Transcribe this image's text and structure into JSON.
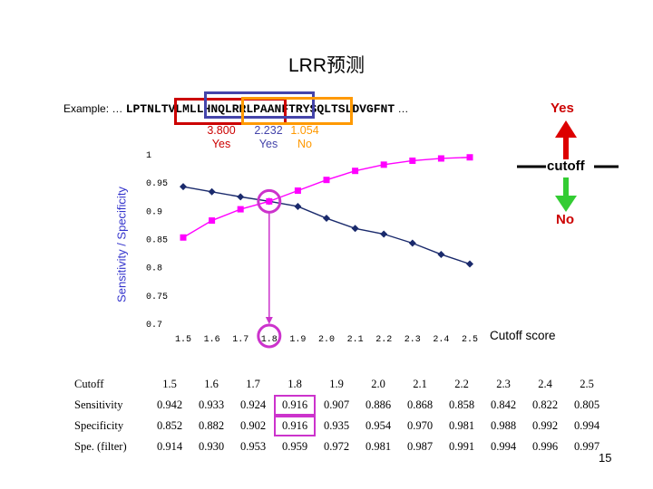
{
  "title": "LRR预测",
  "example": {
    "prefix": "Example: …",
    "sequence": "LPTNLTVLMLLHNQLRRLPAANFTRYSQLTSLDVGFNT",
    "suffix": "…"
  },
  "window_scores": [
    {
      "score": "3.800",
      "call": "Yes",
      "color": "#cc0000"
    },
    {
      "score": "2.232",
      "call": "Yes",
      "color": "#4444aa"
    },
    {
      "score": "1.054",
      "call": "No",
      "color": "#ff9900"
    }
  ],
  "annotations": {
    "yes": "Yes",
    "cutoff": "cutoff",
    "no": "No",
    "page_number": "15"
  },
  "colors": {
    "sensitivity": "#1a2a6c",
    "specificity": "#ff00ff",
    "highlight": "#cc33cc",
    "yes_arrow": "#dd0000",
    "no_arrow": "#33cc33"
  },
  "chart_data": {
    "type": "line",
    "xlabel": "Cutoff score",
    "ylabel": "Sensitivity / Specificity",
    "x": [
      1.5,
      1.6,
      1.7,
      1.8,
      1.9,
      2.0,
      2.1,
      2.2,
      2.3,
      2.4,
      2.5
    ],
    "x_tick_labels": [
      "1.5",
      "1.6",
      "1.7",
      "1.8",
      "1.9",
      "2.0",
      "2.1",
      "2.2",
      "2.3",
      "2.4",
      "2.5"
    ],
    "yticks": [
      0.7,
      0.75,
      0.8,
      0.85,
      0.9,
      0.95,
      1
    ],
    "ytick_labels": [
      "0.7",
      "0.75",
      "0.8",
      "0.85",
      "0.9",
      "0.95",
      "1"
    ],
    "ylim": [
      0.7,
      1
    ],
    "grid": false,
    "series": [
      {
        "key": "sensitivity",
        "marker": "diamond",
        "values": [
          0.942,
          0.933,
          0.924,
          0.916,
          0.907,
          0.886,
          0.868,
          0.858,
          0.842,
          0.822,
          0.805
        ]
      },
      {
        "key": "specificity",
        "marker": "square",
        "values": [
          0.852,
          0.882,
          0.902,
          0.916,
          0.935,
          0.954,
          0.97,
          0.981,
          0.988,
          0.992,
          0.994
        ]
      }
    ],
    "highlight_x": 1.8
  },
  "table": {
    "header": [
      "Cutoff",
      "1.5",
      "1.6",
      "1.7",
      "1.8",
      "1.9",
      "2.0",
      "2.1",
      "2.2",
      "2.3",
      "2.4",
      "2.5"
    ],
    "rows": [
      [
        "Sensitivity",
        "0.942",
        "0.933",
        "0.924",
        "0.916",
        "0.907",
        "0.886",
        "0.868",
        "0.858",
        "0.842",
        "0.822",
        "0.805"
      ],
      [
        "Specificity",
        "0.852",
        "0.882",
        "0.902",
        "0.916",
        "0.935",
        "0.954",
        "0.970",
        "0.981",
        "0.988",
        "0.992",
        "0.994"
      ],
      [
        "Spe. (filter)",
        "0.914",
        "0.930",
        "0.953",
        "0.959",
        "0.972",
        "0.981",
        "0.987",
        "0.991",
        "0.994",
        "0.996",
        "0.997"
      ]
    ],
    "highlight_column": 4
  }
}
